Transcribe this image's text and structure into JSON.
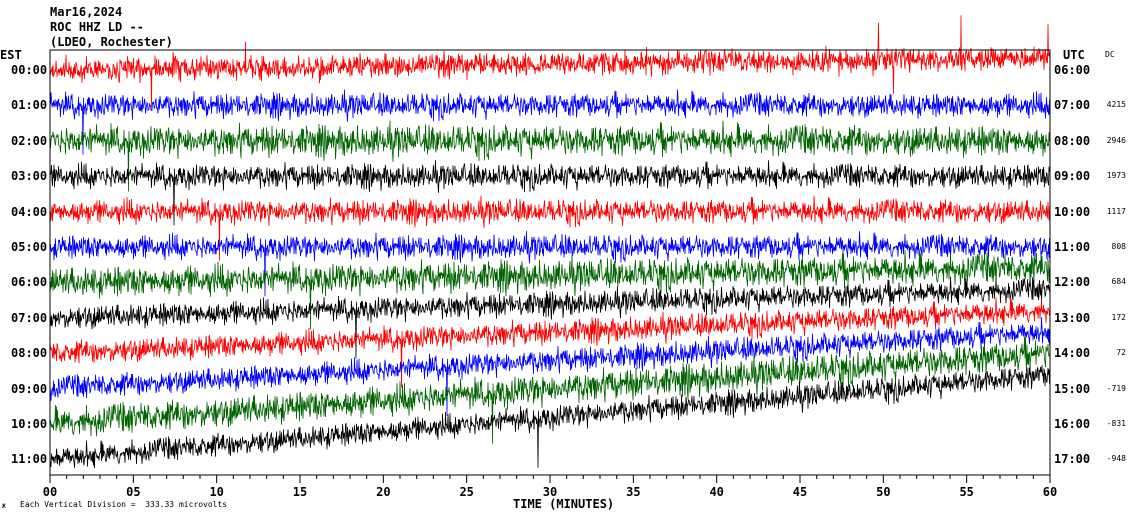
{
  "header": {
    "date": "Mar16,2024",
    "station": "ROC HHZ LD --",
    "network": "(LDEO, Rochester)"
  },
  "left_zone_label": "EST",
  "right_zone_label": "UTC",
  "dc_label": "DC",
  "scale_mark": "Ж",
  "scale_note": "Each Vertical Division =  333.33 microvolts",
  "chart_data": {
    "type": "line",
    "xlabel": "TIME (MINUTES)",
    "xlim": [
      0,
      60
    ],
    "x_ticks": [
      "00",
      "05",
      "10",
      "15",
      "20",
      "25",
      "30",
      "35",
      "40",
      "45",
      "50",
      "55",
      "60"
    ],
    "rows": [
      {
        "est": "00:00",
        "utc": "06:00",
        "dc": "",
        "color": "#ff0000"
      },
      {
        "est": "01:00",
        "utc": "07:00",
        "dc": "4215",
        "color": "#0000ff"
      },
      {
        "est": "02:00",
        "utc": "08:00",
        "dc": "2946",
        "color": "#006400"
      },
      {
        "est": "03:00",
        "utc": "09:00",
        "dc": "1973",
        "color": "#000000"
      },
      {
        "est": "04:00",
        "utc": "10:00",
        "dc": "1117",
        "color": "#ff0000"
      },
      {
        "est": "05:00",
        "utc": "11:00",
        "dc": "808",
        "color": "#0000ff"
      },
      {
        "est": "06:00",
        "utc": "12:00",
        "dc": "684",
        "color": "#006400"
      },
      {
        "est": "07:00",
        "utc": "13:00",
        "dc": "172",
        "color": "#000000"
      },
      {
        "est": "08:00",
        "utc": "14:00",
        "dc": "72",
        "color": "#ff0000"
      },
      {
        "est": "09:00",
        "utc": "15:00",
        "dc": "-719",
        "color": "#0000ff"
      },
      {
        "est": "10:00",
        "utc": "16:00",
        "dc": "-831",
        "color": "#006400"
      },
      {
        "est": "11:00",
        "utc": "17:00",
        "dc": "-948",
        "color": "#000000"
      }
    ]
  }
}
